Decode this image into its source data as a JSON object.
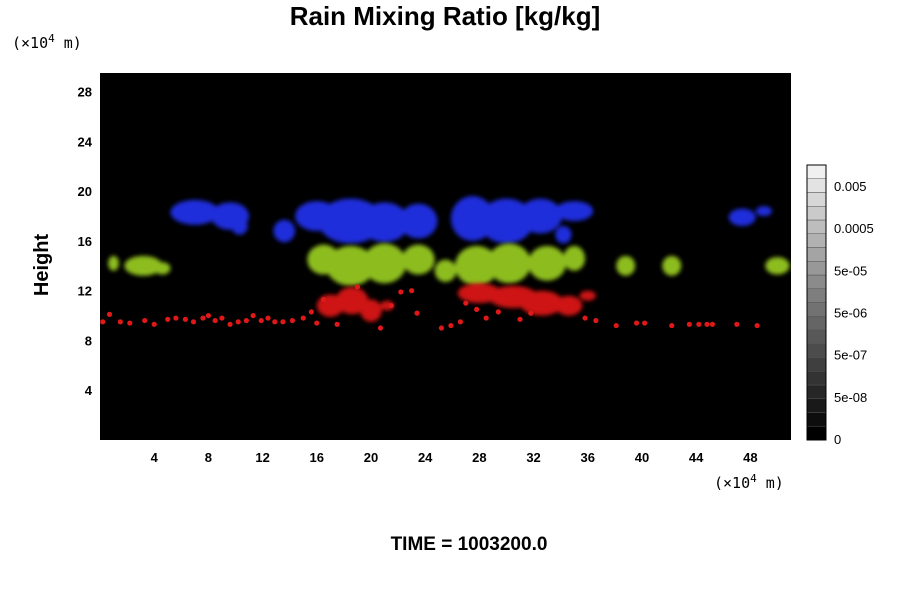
{
  "chart_data": {
    "type": "heatmap",
    "title": "Rain Mixing Ratio [kg/kg]",
    "ylabel": "Height",
    "xlabel": "",
    "x_unit_prefix": "(×10",
    "x_unit_exp": "4",
    "x_unit_suffix": " m)",
    "y_unit_prefix": "(×10",
    "y_unit_exp": "4",
    "y_unit_suffix": " m)",
    "xlim": [
      0,
      51
    ],
    "ylim": [
      0,
      29.5
    ],
    "x_ticks": [
      4,
      8,
      12,
      16,
      20,
      24,
      28,
      32,
      36,
      40,
      44,
      48
    ],
    "y_ticks": [
      4,
      8,
      12,
      16,
      20,
      24,
      28
    ],
    "background_color": "#000000",
    "colorbar": {
      "labels": [
        "0",
        "5e-08",
        "5e-07",
        "5e-06",
        "5e-05",
        "0.0005",
        "0.005"
      ],
      "levels": 20
    },
    "layers": [
      {
        "color": "#2233ee",
        "label_range": "16–19.5",
        "regions": [
          {
            "x": 7.0,
            "y": 18.3,
            "rx": 1.8,
            "ry": 1.0
          },
          {
            "x": 9.6,
            "y": 18.0,
            "rx": 1.4,
            "ry": 1.1
          },
          {
            "x": 10.3,
            "y": 17.2,
            "rx": 0.6,
            "ry": 0.7
          },
          {
            "x": 13.6,
            "y": 16.8,
            "rx": 0.8,
            "ry": 0.9
          },
          {
            "x": 16.0,
            "y": 18.0,
            "rx": 1.6,
            "ry": 1.2
          },
          {
            "x": 18.5,
            "y": 17.6,
            "rx": 2.4,
            "ry": 1.8
          },
          {
            "x": 21.0,
            "y": 17.5,
            "rx": 1.8,
            "ry": 1.6
          },
          {
            "x": 23.5,
            "y": 17.6,
            "rx": 1.4,
            "ry": 1.4
          },
          {
            "x": 27.5,
            "y": 17.8,
            "rx": 1.6,
            "ry": 1.8
          },
          {
            "x": 30.0,
            "y": 17.6,
            "rx": 2.0,
            "ry": 1.8
          },
          {
            "x": 32.5,
            "y": 18.0,
            "rx": 1.6,
            "ry": 1.4
          },
          {
            "x": 35.0,
            "y": 18.4,
            "rx": 1.4,
            "ry": 0.8
          },
          {
            "x": 34.2,
            "y": 16.5,
            "rx": 0.6,
            "ry": 0.7
          },
          {
            "x": 47.4,
            "y": 17.9,
            "rx": 1.0,
            "ry": 0.7
          },
          {
            "x": 49.0,
            "y": 18.4,
            "rx": 0.6,
            "ry": 0.4
          }
        ]
      },
      {
        "color": "#9acd22",
        "label_range": "12.5–15.5",
        "regions": [
          {
            "x": 1.0,
            "y": 14.2,
            "rx": 0.4,
            "ry": 0.6
          },
          {
            "x": 3.2,
            "y": 14.0,
            "rx": 1.4,
            "ry": 0.8
          },
          {
            "x": 4.6,
            "y": 13.8,
            "rx": 0.6,
            "ry": 0.5
          },
          {
            "x": 16.5,
            "y": 14.5,
            "rx": 1.2,
            "ry": 1.2
          },
          {
            "x": 18.5,
            "y": 14.0,
            "rx": 1.8,
            "ry": 1.6
          },
          {
            "x": 21.0,
            "y": 14.2,
            "rx": 1.6,
            "ry": 1.6
          },
          {
            "x": 23.5,
            "y": 14.5,
            "rx": 1.2,
            "ry": 1.2
          },
          {
            "x": 25.5,
            "y": 13.6,
            "rx": 0.8,
            "ry": 0.9
          },
          {
            "x": 27.8,
            "y": 14.0,
            "rx": 1.6,
            "ry": 1.6
          },
          {
            "x": 30.2,
            "y": 14.2,
            "rx": 1.6,
            "ry": 1.6
          },
          {
            "x": 33.0,
            "y": 14.2,
            "rx": 1.4,
            "ry": 1.4
          },
          {
            "x": 35.0,
            "y": 14.6,
            "rx": 0.8,
            "ry": 1.0
          },
          {
            "x": 38.8,
            "y": 14.0,
            "rx": 0.7,
            "ry": 0.8
          },
          {
            "x": 42.2,
            "y": 14.0,
            "rx": 0.7,
            "ry": 0.8
          },
          {
            "x": 50.0,
            "y": 14.0,
            "rx": 0.9,
            "ry": 0.7
          }
        ]
      },
      {
        "color": "#e01818",
        "label_range": "9–12.5",
        "regions": [
          {
            "x": 17.0,
            "y": 10.8,
            "rx": 1.0,
            "ry": 0.9
          },
          {
            "x": 18.6,
            "y": 11.2,
            "rx": 1.2,
            "ry": 1.1
          },
          {
            "x": 20.0,
            "y": 10.4,
            "rx": 0.8,
            "ry": 0.9
          },
          {
            "x": 21.2,
            "y": 10.8,
            "rx": 0.5,
            "ry": 0.4
          },
          {
            "x": 28.0,
            "y": 11.8,
            "rx": 1.6,
            "ry": 0.8
          },
          {
            "x": 30.5,
            "y": 11.5,
            "rx": 1.8,
            "ry": 0.9
          },
          {
            "x": 32.6,
            "y": 11.0,
            "rx": 1.6,
            "ry": 1.0
          },
          {
            "x": 34.6,
            "y": 10.8,
            "rx": 1.0,
            "ry": 0.8
          },
          {
            "x": 36.0,
            "y": 11.6,
            "rx": 0.6,
            "ry": 0.4
          }
        ]
      }
    ],
    "dots": {
      "color": "#e01818",
      "points": [
        [
          0.2,
          9.5
        ],
        [
          0.7,
          10.1
        ],
        [
          1.5,
          9.5
        ],
        [
          2.2,
          9.4
        ],
        [
          3.3,
          9.6
        ],
        [
          4.0,
          9.3
        ],
        [
          5.0,
          9.7
        ],
        [
          5.6,
          9.8
        ],
        [
          6.3,
          9.7
        ],
        [
          6.9,
          9.5
        ],
        [
          7.6,
          9.8
        ],
        [
          8.0,
          10.0
        ],
        [
          8.5,
          9.6
        ],
        [
          9.0,
          9.8
        ],
        [
          9.6,
          9.3
        ],
        [
          10.2,
          9.5
        ],
        [
          10.8,
          9.6
        ],
        [
          11.3,
          10.0
        ],
        [
          11.9,
          9.6
        ],
        [
          12.4,
          9.8
        ],
        [
          12.9,
          9.5
        ],
        [
          13.5,
          9.5
        ],
        [
          14.2,
          9.6
        ],
        [
          15.0,
          9.8
        ],
        [
          15.6,
          10.3
        ],
        [
          16.0,
          9.4
        ],
        [
          16.5,
          11.3
        ],
        [
          17.5,
          9.3
        ],
        [
          19.0,
          12.3
        ],
        [
          20.7,
          9.0
        ],
        [
          21.5,
          10.8
        ],
        [
          22.2,
          11.9
        ],
        [
          23.0,
          12.0
        ],
        [
          23.4,
          10.2
        ],
        [
          25.2,
          9.0
        ],
        [
          25.9,
          9.2
        ],
        [
          26.6,
          9.5
        ],
        [
          27.0,
          11.0
        ],
        [
          27.8,
          10.5
        ],
        [
          28.5,
          9.8
        ],
        [
          29.4,
          10.3
        ],
        [
          31.0,
          9.7
        ],
        [
          31.8,
          10.2
        ],
        [
          35.8,
          9.8
        ],
        [
          36.6,
          9.6
        ],
        [
          38.1,
          9.2
        ],
        [
          39.6,
          9.4
        ],
        [
          40.2,
          9.4
        ],
        [
          42.2,
          9.2
        ],
        [
          43.5,
          9.3
        ],
        [
          44.2,
          9.3
        ],
        [
          44.8,
          9.3
        ],
        [
          45.2,
          9.3
        ],
        [
          47.0,
          9.3
        ],
        [
          48.5,
          9.2
        ]
      ]
    }
  },
  "footer": {
    "time_label": "TIME = 1003200.0"
  }
}
